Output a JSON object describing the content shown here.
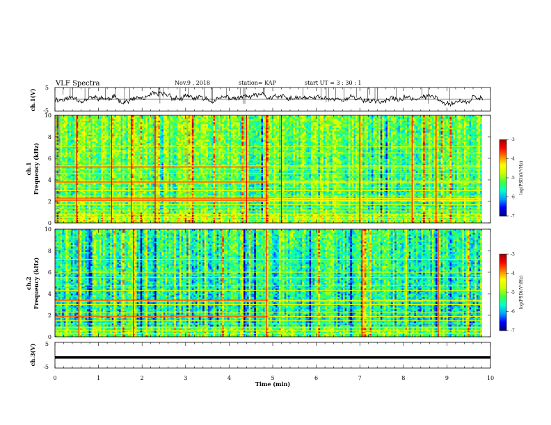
{
  "header": {
    "title": "VLF Spectra",
    "date": "Nov.9 , 2018",
    "station": "station= KAP",
    "start": "start UT = 3 : 30 : 1"
  },
  "chart_data": [
    {
      "type": "line",
      "panel": "ch1_waveform",
      "ylabel": "ch.1(V)",
      "ylim": [
        -5,
        5
      ],
      "y_ticks": [
        "5",
        "-5"
      ],
      "x_range_min": [
        0,
        10
      ],
      "trace_seed": 11,
      "trace_mean": 0.2,
      "trace_amplitude": 2.6
    },
    {
      "type": "heatmap",
      "panel": "ch1_spectrogram",
      "ylabel": "ch.1\nFrequency (kHz)",
      "ylim": [
        0,
        10
      ],
      "y_ticks": [
        "0",
        "2",
        "4",
        "6",
        "8",
        "10"
      ],
      "x_range_min": [
        0,
        9.8
      ],
      "seed": 7,
      "base_level": -5.4,
      "high_band_lines_khz": [
        0.3,
        0.5,
        0.8,
        1.1,
        1.4,
        1.7,
        2.0,
        2.2,
        2.5,
        3.0,
        3.3,
        3.7,
        3.9,
        4.6,
        5.0,
        5.3,
        6.5,
        7.1
      ],
      "strong_lines_khz": [
        2.1,
        2.3,
        3.8,
        5.2
      ],
      "event_columns_min": [
        0.5,
        1.3,
        1.75,
        2.3,
        4.4,
        4.85,
        5.2,
        7.0,
        8.2,
        8.75
      ]
    },
    {
      "type": "heatmap",
      "panel": "ch2_spectrogram",
      "ylabel": "ch.2\nFrequency (kHz)",
      "ylim": [
        0,
        10
      ],
      "y_ticks": [
        "0",
        "2",
        "4",
        "6",
        "8",
        "10"
      ],
      "x_range_min": [
        0,
        9.8
      ],
      "seed": 23,
      "base_level": -5.7,
      "high_band_lines_khz": [
        0.3,
        0.6,
        0.9,
        1.2,
        1.5,
        1.9,
        2.3,
        3.0,
        3.3,
        4.3,
        4.8,
        5.5,
        6.0,
        7.2
      ],
      "strong_lines_khz": [
        3.4,
        1.9
      ],
      "event_columns_min": [
        0.55,
        1.8,
        4.85,
        7.05,
        8.8
      ]
    },
    {
      "type": "line",
      "panel": "ch3_waveform",
      "ylabel": "ch.3(V)",
      "ylim": [
        -5,
        5
      ],
      "y_ticks": [
        "5",
        "-5"
      ],
      "x_range_min": [
        0,
        10
      ],
      "constant_value": -0.9
    }
  ],
  "x_axis": {
    "label": "Time (min)",
    "range": [
      0,
      10
    ],
    "ticks": [
      "0",
      "1",
      "2",
      "3",
      "4",
      "5",
      "6",
      "7",
      "8",
      "9",
      "10"
    ]
  },
  "colorbars": [
    {
      "label": "log(PSD)(V²/Hz)",
      "range": [
        -7,
        -3
      ],
      "ticks": [
        "-3",
        "-4",
        "-5",
        "-6",
        "-7"
      ]
    },
    {
      "label": "log(PSD)(V²/Hz)",
      "range": [
        -7,
        -3
      ],
      "ticks": [
        "-3",
        "-4",
        "-5",
        "-6",
        "-7"
      ]
    }
  ],
  "colors": {
    "trace": "#000000",
    "scale": [
      "#00007f",
      "#0000ff",
      "#00a0ff",
      "#00ffd0",
      "#40ff40",
      "#c8ff00",
      "#ffff00",
      "#ff8000",
      "#ff0000",
      "#a00000"
    ]
  }
}
